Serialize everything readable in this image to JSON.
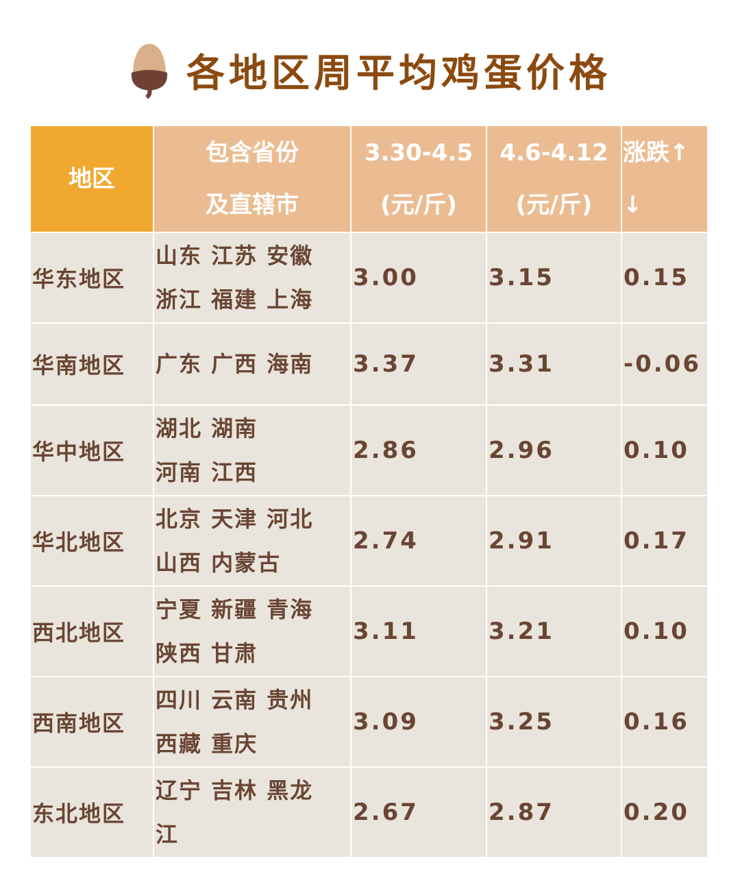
{
  "title": "各地区周平均鸡蛋价格",
  "icon": "acorn-icon",
  "colors": {
    "title": "#8B4A0F",
    "header_region": "#F0A92E",
    "header": "#EBBC92",
    "cell": "#E9E5DC",
    "text": "#6A4534"
  },
  "headers": [
    "地区",
    "包含省份\n及直辖市",
    "3.30-4.5\n(元/斤)",
    "4.6-4.12\n(元/斤)",
    "涨跌↑\n↓"
  ],
  "rows": [
    {
      "region": "华东地区",
      "provinces": "山东  江苏  安徽\n浙江  福建  上海",
      "p1": "3.00",
      "p2": "3.15",
      "change": "0.15"
    },
    {
      "region": "华南地区",
      "provinces": "广东  广西  海南",
      "p1": "3.37",
      "p2": "3.31",
      "change": "-0.06"
    },
    {
      "region": "华中地区",
      "provinces": "湖北  湖南\n河南  江西",
      "p1": "2.86",
      "p2": "2.96",
      "change": "0.10"
    },
    {
      "region": "华北地区",
      "provinces": "北京  天津  河北\n山西  内蒙古",
      "p1": "2.74",
      "p2": "2.91",
      "change": "0.17"
    },
    {
      "region": "西北地区",
      "provinces": "宁夏  新疆  青海\n陕西  甘肃",
      "p1": "3.11",
      "p2": "3.21",
      "change": "0.10"
    },
    {
      "region": "西南地区",
      "provinces": "四川  云南  贵州\n西藏  重庆",
      "p1": "3.09",
      "p2": "3.25",
      "change": "0.16"
    },
    {
      "region": "东北地区",
      "provinces": "辽宁  吉林  黑龙\n江",
      "p1": "2.67",
      "p2": "2.87",
      "change": "0.20"
    }
  ]
}
